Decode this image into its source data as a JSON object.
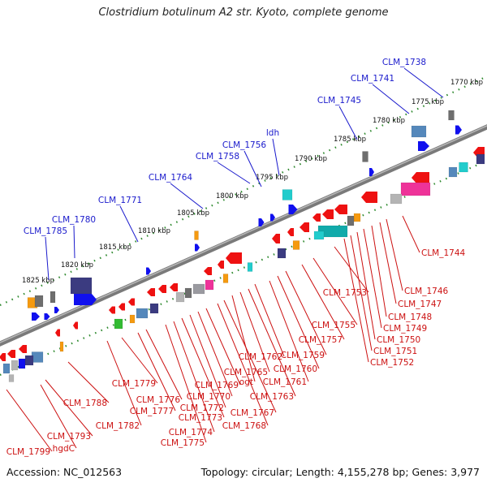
{
  "title": "Clostridium botulinum A2 str. Kyoto, complete genome",
  "footer": {
    "accession": "Accession: NC_012563",
    "summary": "Topology: circular; Length: 4,155,278 bp; Genes: 3,977"
  },
  "colors": {
    "forward_label": "#1a1acc",
    "reverse_label": "#cc1111",
    "backbone": "#808080",
    "tick": "#338833"
  },
  "kbp_ticks": [
    "1770 kbp",
    "1775 kbp",
    "1780 kbp",
    "1785 kbp",
    "1790 kbp",
    "1795 kbp",
    "1800 kbp",
    "1805 kbp",
    "1810 kbp",
    "1815 kbp",
    "1820 kbp",
    "1825 kbp"
  ],
  "forward_genes": [
    "CLM_1738",
    "CLM_1741",
    "CLM_1745",
    "ldh",
    "CLM_1756",
    "CLM_1758",
    "CLM_1764",
    "CLM_1771",
    "CLM_1780",
    "CLM_1785"
  ],
  "reverse_genes": [
    "CLM_1744",
    "CLM_1746",
    "CLM_1747",
    "CLM_1748",
    "CLM_1749",
    "CLM_1750",
    "CLM_1751",
    "CLM_1752",
    "CLM_1753",
    "CLM_1755",
    "CLM_1757",
    "CLM_1759",
    "CLM_1760",
    "CLM_1761",
    "CLM_1762",
    "CLM_1763",
    "CLM_1765",
    "ogt",
    "CLM_1767",
    "CLM_1768",
    "CLM_1769",
    "CLM_1770",
    "CLM_1772",
    "CLM_1773",
    "CLM_1774",
    "CLM_1775",
    "CLM_1776",
    "CLM_1777",
    "CLM_1779",
    "CLM_1782",
    "CLM_1788",
    "CLM_1793",
    "hgdC",
    "CLM_1799"
  ]
}
